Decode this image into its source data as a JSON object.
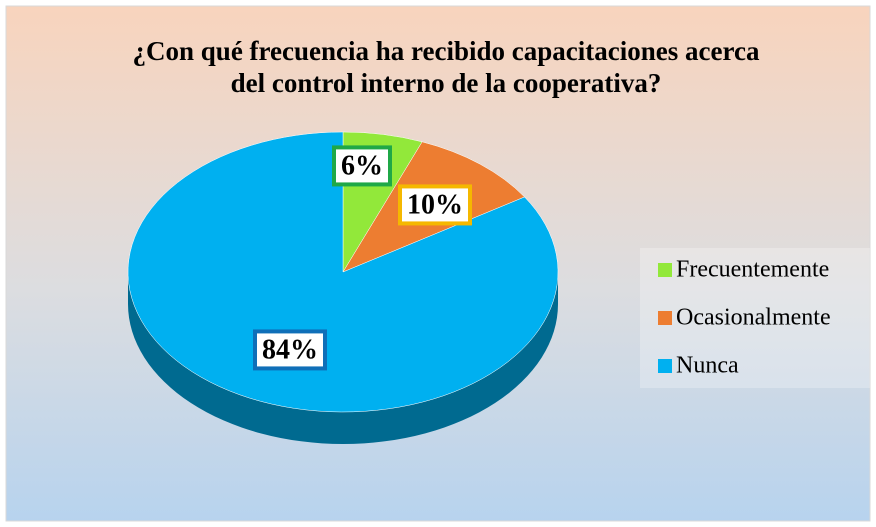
{
  "chart_data": {
    "type": "pie",
    "title": [
      "¿Con qué frecuencia ha recibido capacitaciones acerca",
      "del control interno de la cooperativa?"
    ],
    "categories": [
      "Frecuentemente",
      "Ocasionalmente",
      "Nunca"
    ],
    "values": [
      6,
      10,
      84
    ],
    "value_labels": [
      "6%",
      "10%",
      "84%"
    ],
    "colors": [
      "#92e83a",
      "#ed7d31",
      "#00b0f0"
    ],
    "legend": "right"
  }
}
